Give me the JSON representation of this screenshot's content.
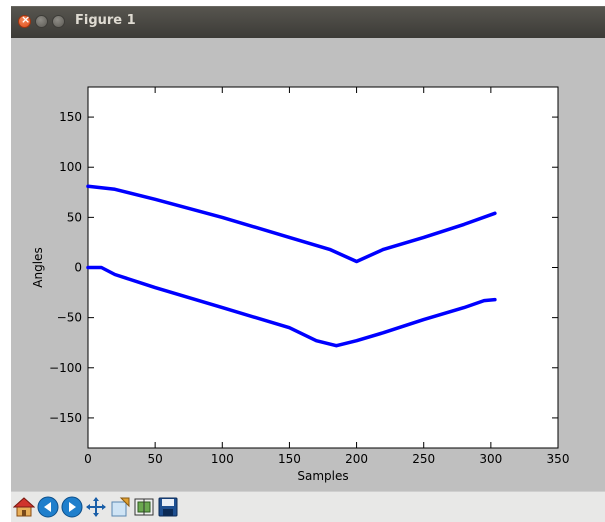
{
  "window": {
    "title": "Figure 1"
  },
  "toolbar": {
    "buttons": [
      "home-icon",
      "back-icon",
      "forward-icon",
      "pan-icon",
      "zoom-icon",
      "subplots-icon",
      "save-icon"
    ]
  },
  "chart_data": {
    "type": "line",
    "title": "",
    "xlabel": "Samples",
    "ylabel": "Angles",
    "xlim": [
      0,
      350
    ],
    "ylim": [
      -180,
      180
    ],
    "xticks": [
      "0",
      "50",
      "100",
      "150",
      "200",
      "250",
      "300",
      "350"
    ],
    "yticks": [
      "−150",
      "−100",
      "−50",
      "0",
      "50",
      "100",
      "150"
    ],
    "grid": false,
    "color": "#0000ff",
    "series": [
      {
        "x": [
          0,
          20,
          50,
          100,
          150,
          180,
          200,
          220,
          250,
          280,
          303
        ],
        "y": [
          81,
          78,
          68,
          50,
          30,
          18,
          6,
          18,
          30,
          43,
          54
        ]
      },
      {
        "x": [
          0,
          10,
          20,
          50,
          100,
          150,
          170,
          185,
          200,
          220,
          250,
          280,
          295,
          303
        ],
        "y": [
          0,
          0,
          -7,
          -20,
          -40,
          -60,
          -73,
          -78,
          -73,
          -65,
          -52,
          -40,
          -33,
          -32
        ]
      }
    ]
  }
}
